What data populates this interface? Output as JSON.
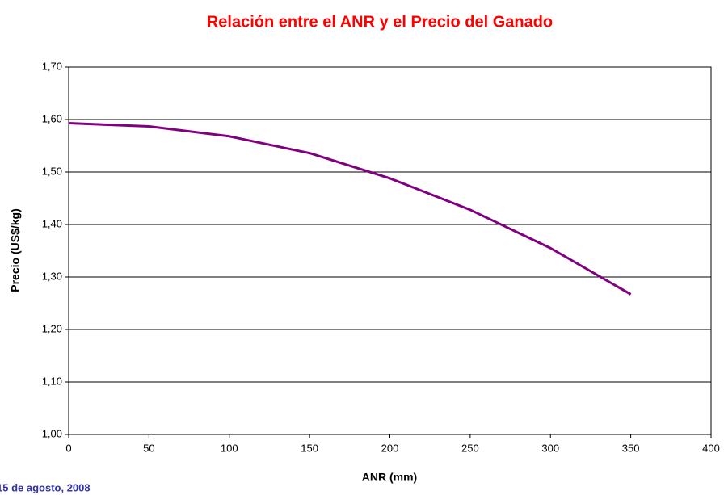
{
  "chart_data": {
    "type": "line",
    "title": "Relación entre el ANR y el Precio del Ganado",
    "x_label": "ANR (mm)",
    "y_label": "Precio (US$/kg)",
    "footnote": "15 de agosto, 2008",
    "x": [
      0,
      50,
      100,
      150,
      200,
      250,
      300,
      350
    ],
    "series": [
      {
        "color": "#800080",
        "values": [
          1.593,
          1.587,
          1.568,
          1.536,
          1.488,
          1.428,
          1.355,
          1.267
        ]
      }
    ],
    "xlim": [
      0,
      400
    ],
    "xticks": [
      0,
      50,
      100,
      150,
      200,
      250,
      300,
      350,
      400
    ],
    "ylim": [
      1.0,
      1.7
    ],
    "yticks": [
      {
        "value": 1.0,
        "label": "1,00"
      },
      {
        "value": 1.1,
        "label": "1,10"
      },
      {
        "value": 1.2,
        "label": "1,20"
      },
      {
        "value": 1.3,
        "label": "1,30"
      },
      {
        "value": 1.4,
        "label": "1,40"
      },
      {
        "value": 1.5,
        "label": "1,50"
      },
      {
        "value": 1.6,
        "label": "1,60"
      },
      {
        "value": 1.7,
        "label": "1,70"
      }
    ],
    "grid": true
  }
}
